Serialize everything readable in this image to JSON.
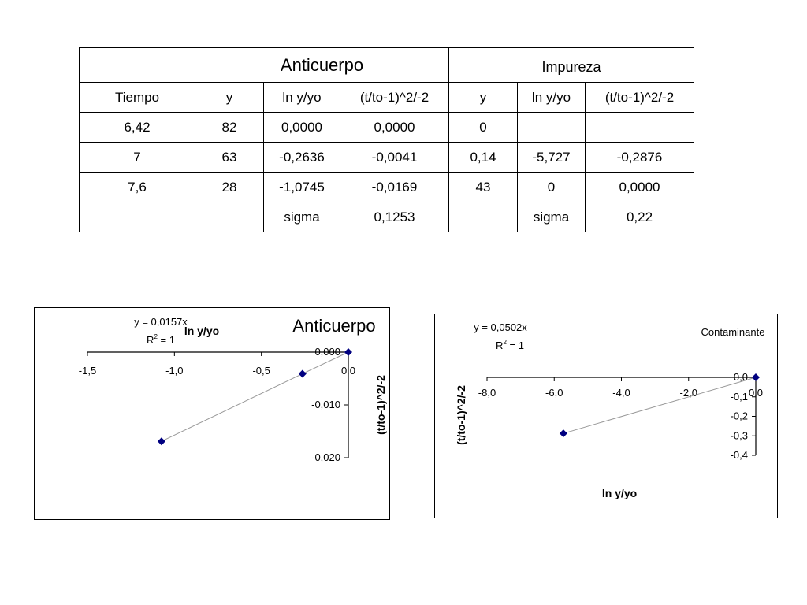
{
  "table": {
    "groups": [
      "Anticuerpo",
      "Impureza"
    ],
    "headers": [
      "Tiempo",
      "y",
      "ln y/yo",
      "(t/to-1)^2/-2",
      "y",
      "ln y/yo",
      "(t/to-1)^2/-2"
    ],
    "rows": [
      [
        "6,42",
        "82",
        "0,0000",
        "0,0000",
        "0",
        "",
        ""
      ],
      [
        "7",
        "63",
        "-0,2636",
        "-0,0041",
        "0,14",
        "-5,727",
        "-0,2876"
      ],
      [
        "7,6",
        "28",
        "-1,0745",
        "-0,0169",
        "43",
        "0",
        "0,0000"
      ],
      [
        "",
        "",
        "sigma",
        "0,1253",
        "",
        "sigma",
        "0,22"
      ]
    ]
  },
  "chart_data": [
    {
      "type": "scatter",
      "title": "Anticuerpo",
      "xlabel": "ln y/yo",
      "ylabel": "(t/to-1)^2/-2",
      "equation": "y = 0,0157x",
      "r2_prefix": "R",
      "r2_exp": "2",
      "r2_value": " = 1",
      "xlim": [
        -1.5,
        0
      ],
      "ylim": [
        -0.02,
        0
      ],
      "xticks": [
        -1.5,
        -1.0,
        -0.5,
        0
      ],
      "xtick_labels": [
        "-1,5",
        "-1,0",
        "-0,5",
        "0,0"
      ],
      "yticks": [
        0,
        -0.01,
        -0.02
      ],
      "ytick_labels": [
        "0,000",
        "-0,010",
        "-0,020"
      ],
      "points": [
        {
          "x": 0,
          "y": 0
        },
        {
          "x": -0.2636,
          "y": -0.0041
        },
        {
          "x": -1.0745,
          "y": -0.0169
        }
      ],
      "marker_color": "#000080",
      "line_color": "#999999"
    },
    {
      "type": "scatter",
      "title": "Contaminante",
      "xlabel": "ln y/yo",
      "ylabel": "(t/to-1)^2/-2",
      "equation": "y = 0,0502x",
      "r2_prefix": "R",
      "r2_exp": "2",
      "r2_value": " = 1",
      "xlim": [
        -8,
        0
      ],
      "ylim": [
        -0.4,
        0
      ],
      "xticks": [
        -8,
        -6,
        -4,
        -2,
        0
      ],
      "xtick_labels": [
        "-8,0",
        "-6,0",
        "-4,0",
        "-2,0",
        "0,0"
      ],
      "yticks": [
        0,
        -0.1,
        -0.2,
        -0.3,
        -0.4
      ],
      "ytick_labels": [
        "0,0",
        "-0,1",
        "-0,2",
        "-0,3",
        "-0,4"
      ],
      "points": [
        {
          "x": 0,
          "y": 0
        },
        {
          "x": -5.727,
          "y": -0.2876
        }
      ],
      "marker_color": "#000080",
      "line_color": "#999999"
    }
  ]
}
